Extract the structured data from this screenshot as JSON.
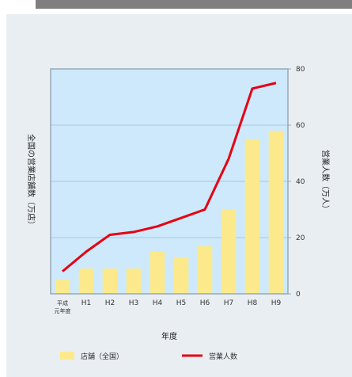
{
  "chart_data": {
    "type": "bar",
    "categories": [
      "平成\n元年度",
      "H1",
      "H2",
      "H3",
      "H4",
      "H5",
      "H6",
      "H7",
      "H8",
      "H9"
    ],
    "series": [
      {
        "name": "店舗（全国）",
        "type": "bar",
        "axis": "left",
        "color": "#fbe98c",
        "values": [
          5,
          9,
          9,
          9,
          15,
          13,
          17,
          30,
          55,
          58
        ]
      },
      {
        "name": "営業人数",
        "type": "line",
        "axis": "right",
        "color": "#e60012",
        "values": [
          8,
          15,
          21,
          22,
          24,
          27,
          30,
          48,
          73,
          75
        ]
      }
    ],
    "xlabel": "年度",
    "ylabel_left": "全国の営業店舗数（万店）",
    "ylabel_right": "営業人数（万人）",
    "ylim_left": [
      0,
      80
    ],
    "ylim_right": [
      0,
      80
    ],
    "yticks_right": [
      "0",
      "20",
      "40",
      "60",
      "80"
    ],
    "plot_background": "#cde9fb",
    "grid": "horizontal"
  },
  "legend": {
    "bar_label": "店舗（全国）",
    "line_label": "営業人数"
  },
  "colors": {
    "panel": "#e9eef2",
    "top_bar": "#7f7f7f",
    "plot_border": "#9aa8b4",
    "grid": "#a9c8de"
  }
}
